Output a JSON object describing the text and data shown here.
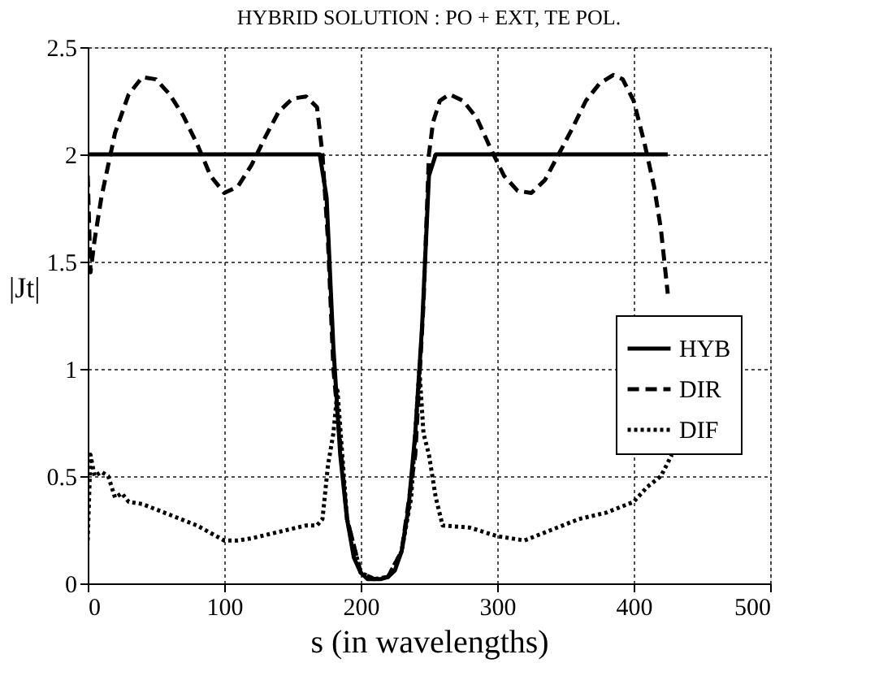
{
  "chart_data": {
    "type": "line",
    "title": "HYBRID SOLUTION : PO + EXT, TE POL.",
    "xlabel": "s (in wavelengths)",
    "ylabel": "|Jt|",
    "xlim": [
      0,
      500
    ],
    "xticks": [
      0,
      100,
      200,
      300,
      400,
      500
    ],
    "ylim": [
      0,
      2.5
    ],
    "yticks": [
      0,
      0.5,
      1,
      1.5,
      2,
      2.5
    ],
    "grid": true,
    "legend": "right",
    "marker": "none",
    "series": [
      {
        "name": "HYB",
        "color": "#000000",
        "line_style": "solid",
        "x": [
          0,
          50,
          100,
          150,
          170,
          175,
          180,
          185,
          190,
          195,
          200,
          205,
          210,
          215,
          220,
          225,
          230,
          235,
          240,
          245,
          250,
          255,
          300,
          350,
          400,
          425
        ],
        "values": [
          2,
          2,
          2,
          2,
          2,
          1.8,
          1.1,
          0.6,
          0.3,
          0.12,
          0.05,
          0.02,
          0.02,
          0.02,
          0.03,
          0.06,
          0.15,
          0.35,
          0.7,
          1.2,
          1.9,
          2,
          2,
          2,
          2,
          2
        ]
      },
      {
        "name": "DIR",
        "color": "#000000",
        "line_style": "dashed",
        "x": [
          0,
          2,
          5,
          10,
          20,
          30,
          40,
          50,
          60,
          70,
          80,
          90,
          100,
          110,
          120,
          130,
          140,
          150,
          160,
          168,
          172,
          176,
          180,
          190,
          200,
          210,
          220,
          230,
          240,
          246,
          250,
          253,
          258,
          265,
          275,
          285,
          295,
          305,
          315,
          325,
          335,
          345,
          355,
          365,
          375,
          385,
          392,
          400,
          408,
          415,
          420,
          425
        ],
        "values": [
          1.9,
          1.45,
          1.6,
          1.8,
          2.1,
          2.28,
          2.36,
          2.35,
          2.28,
          2.18,
          2.05,
          1.9,
          1.82,
          1.85,
          1.95,
          2.08,
          2.2,
          2.26,
          2.27,
          2.22,
          2.0,
          1.6,
          1.0,
          0.3,
          0.05,
          0.02,
          0.03,
          0.15,
          0.6,
          1.3,
          2.0,
          2.15,
          2.25,
          2.28,
          2.25,
          2.17,
          2.03,
          1.9,
          1.83,
          1.82,
          1.88,
          2.0,
          2.12,
          2.25,
          2.33,
          2.37,
          2.35,
          2.25,
          2.05,
          1.85,
          1.65,
          1.35
        ]
      },
      {
        "name": "DIF",
        "color": "#000000",
        "line_style": "dotted",
        "x": [
          0,
          2,
          5,
          10,
          15,
          20,
          25,
          30,
          40,
          60,
          80,
          100,
          110,
          120,
          140,
          160,
          168,
          172,
          176,
          180,
          183,
          190,
          200,
          210,
          220,
          230,
          237,
          243,
          246,
          250,
          255,
          260,
          280,
          300,
          320,
          340,
          360,
          380,
          400,
          410,
          420,
          428
        ],
        "values": [
          0.2,
          0.6,
          0.5,
          0.52,
          0.5,
          0.4,
          0.42,
          0.38,
          0.37,
          0.32,
          0.27,
          0.2,
          0.2,
          0.21,
          0.24,
          0.27,
          0.27,
          0.3,
          0.55,
          0.7,
          0.9,
          0.3,
          0.05,
          0.02,
          0.03,
          0.15,
          0.4,
          1.0,
          0.7,
          0.6,
          0.4,
          0.27,
          0.26,
          0.22,
          0.2,
          0.25,
          0.3,
          0.33,
          0.38,
          0.45,
          0.5,
          0.6
        ]
      }
    ]
  }
}
